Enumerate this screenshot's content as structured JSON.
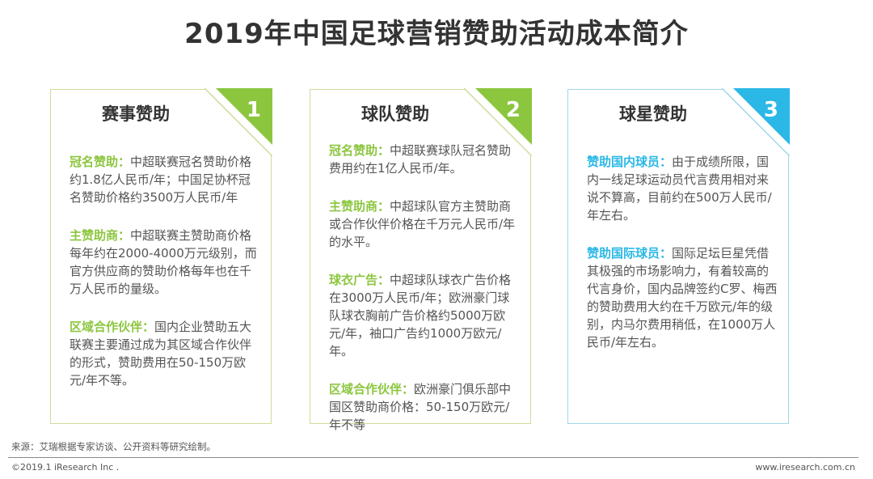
{
  "title": "2019年中国足球营销赞助活动成本简介",
  "colors": {
    "green": "#8cc63f",
    "blue": "#2bb8e6"
  },
  "cards": [
    {
      "title": "赛事赞助",
      "number": "1",
      "items": [
        {
          "keyword": "冠名赞助：",
          "text": "中超联赛冠名赞助价格约1.8亿人民币/年；中国足协杯冠名赞助价格约3500万人民币/年"
        },
        {
          "keyword": "主赞助商：",
          "text": "中超联赛主赞助商价格每年约在2000-4000万元级别，而官方供应商的赞助价格每年也在千万人民币的量级。"
        },
        {
          "keyword": "区域合作伙伴：",
          "text": "国内企业赞助五大联赛主要通过成为其区域合作伙伴的形式，赞助费用在50-150万欧元/年不等。"
        }
      ]
    },
    {
      "title": "球队赞助",
      "number": "2",
      "items": [
        {
          "keyword": "冠名赞助：",
          "text": "中超联赛球队冠名赞助费用约在1亿人民币/年。"
        },
        {
          "keyword": "主赞助商：",
          "text": "中超球队官方主赞助商或合作伙伴价格在千万元人民币/年的水平。"
        },
        {
          "keyword": "球衣广告：",
          "text": "中超球队球衣广告价格在3000万人民币/年；欧洲豪门球队球衣胸前广告价格约5000万欧元/年，袖口广告约1000万欧元/年。"
        },
        {
          "keyword": "区域合作伙伴：",
          "text": "欧洲豪门俱乐部中国区赞助商价格：50-150万欧元/年不等"
        }
      ]
    },
    {
      "title": "球星赞助",
      "number": "3",
      "items": [
        {
          "keyword": "赞助国内球员：",
          "text": "由于成绩所限，国内一线足球运动员代言费用相对来说不算高，目前约在500万人民币/年左右。"
        },
        {
          "keyword": "赞助国际球员：",
          "text": "国际足坛巨星凭借其极强的市场影响力，有着较高的代言身价，国内品牌签约C罗、梅西的赞助费用大约在千万欧元/年的级别，内马尔费用稍低，在1000万人民币/年左右。"
        }
      ]
    }
  ],
  "footer": {
    "source": "来源：艾瑞根据专家访谈、公开资料等研究绘制。",
    "copyright": "©2019.1 iResearch Inc .",
    "website": "www.iresearch.com.cn"
  }
}
